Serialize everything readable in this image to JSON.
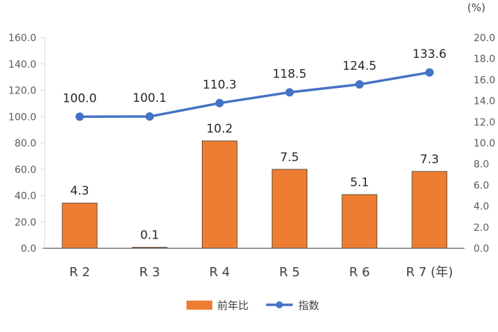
{
  "chart_data": {
    "type": "bar",
    "categories": [
      "R 2",
      "R 3",
      "R 4",
      "R 5",
      "R 6",
      "R 7 (年)"
    ],
    "series": [
      {
        "name": "前年比",
        "type": "bar",
        "axis": "right",
        "values": [
          4.3,
          0.1,
          10.2,
          7.5,
          5.1,
          7.3
        ],
        "color": "#ED7D31"
      },
      {
        "name": "指数",
        "type": "line",
        "axis": "left",
        "values": [
          100.0,
          100.1,
          110.3,
          118.5,
          124.5,
          133.6
        ],
        "color": "#4472C4"
      }
    ],
    "left_axis": {
      "ylim": [
        0,
        160
      ],
      "ticks": [
        "0.0",
        "20.0",
        "40.0",
        "60.0",
        "80.0",
        "100.0",
        "120.0",
        "140.0",
        "160.0"
      ]
    },
    "right_axis": {
      "ylim": [
        0,
        20
      ],
      "ticks": [
        "0.0",
        "2.0",
        "4.0",
        "6.0",
        "8.0",
        "10.0",
        "12.0",
        "14.0",
        "16.0",
        "18.0",
        "20.0"
      ],
      "unit_label": "(%)"
    },
    "grid": false,
    "legend_position": "bottom"
  }
}
